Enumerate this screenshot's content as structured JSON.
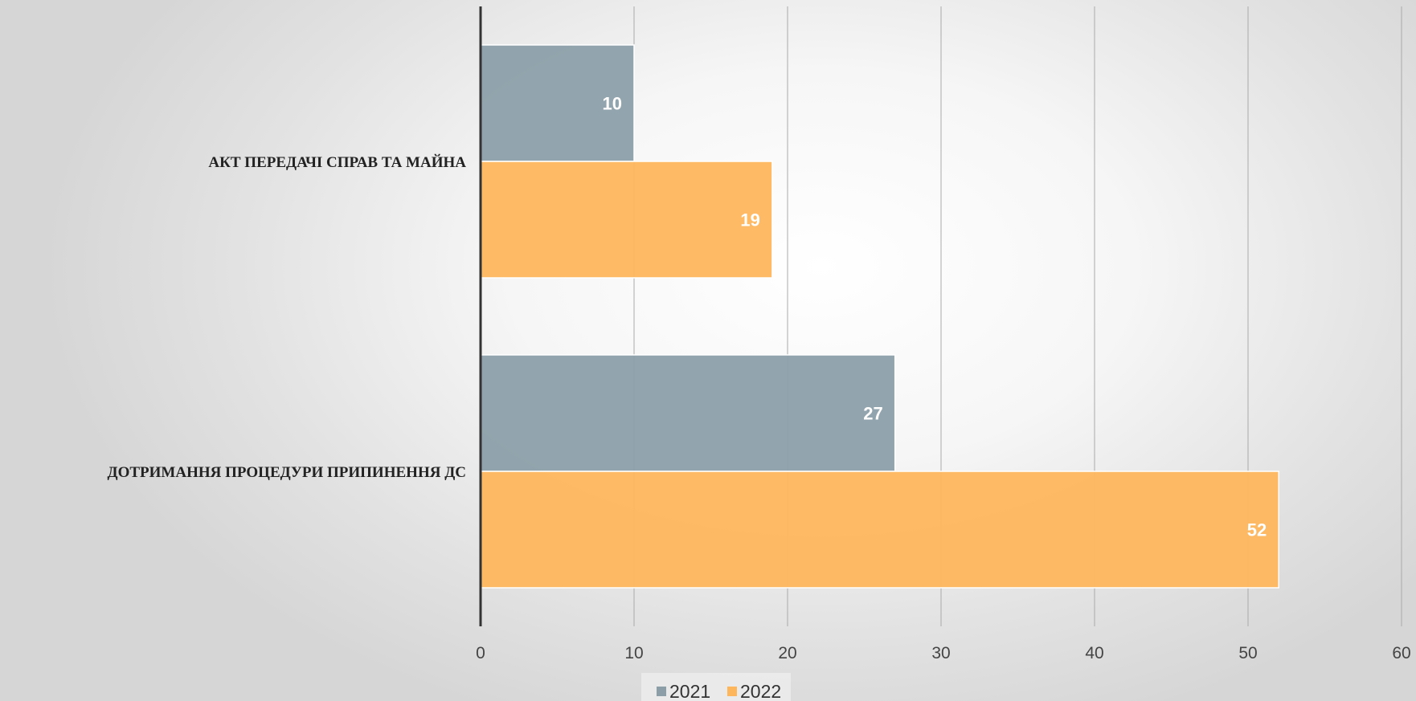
{
  "chart_data": {
    "type": "bar",
    "orientation": "horizontal",
    "categories": [
      "АКТ ПЕРЕДАЧІ СПРАВ ТА МАЙНА",
      "ДОТРИМАННЯ ПРОЦЕДУРИ ПРИПИНЕННЯ ДС"
    ],
    "series": [
      {
        "name": "2021",
        "values": [
          10,
          27
        ],
        "color": "#8c9fa9"
      },
      {
        "name": "2022",
        "values": [
          19,
          52
        ],
        "color": "#feb65c"
      }
    ],
    "xlim": [
      0,
      60
    ],
    "xticks": [
      "0",
      "10",
      "20",
      "30",
      "40",
      "50",
      "60"
    ],
    "grid": true,
    "legend": "bottom",
    "data_labels": true
  }
}
